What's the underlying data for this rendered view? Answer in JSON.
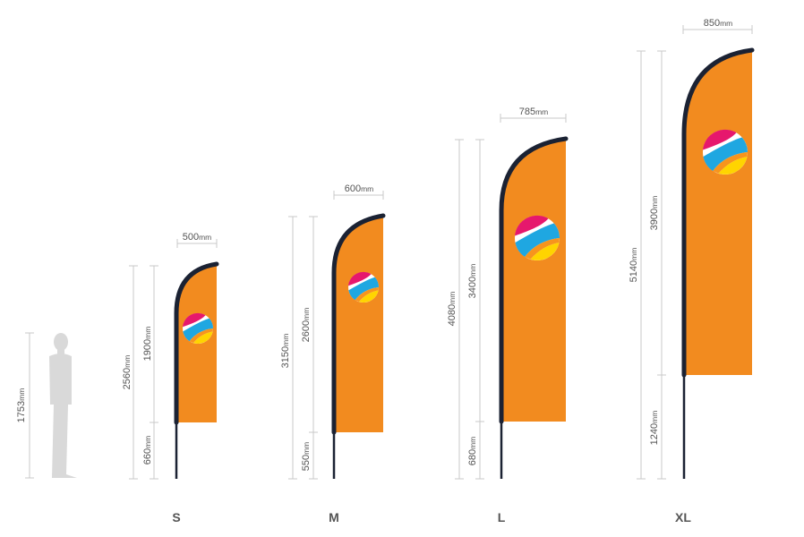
{
  "human": {
    "height": "1753",
    "unit": "mm"
  },
  "flags": [
    {
      "size": "S",
      "width": "500",
      "total": "2560",
      "flag": "1900",
      "pole": "660",
      "unit": "mm"
    },
    {
      "size": "M",
      "width": "600",
      "total": "3150",
      "flag": "2600",
      "pole": "550",
      "unit": "mm"
    },
    {
      "size": "L",
      "width": "785",
      "total": "4080",
      "flag": "3400",
      "pole": "680",
      "unit": "mm"
    },
    {
      "size": "XL",
      "width": "850",
      "total": "5140",
      "flag": "3900",
      "pole": "1240",
      "unit": "mm"
    }
  ],
  "colors": {
    "flag_orange": "#f28b1f",
    "flag_edge": "#f6a046",
    "frame": "#1b2233",
    "dim_line": "#c8c8c8",
    "silhouette": "#d9d9d9",
    "logo_magenta": "#e6186d",
    "logo_blue": "#1fa7e1",
    "logo_yellow": "#ffd400",
    "logo_orange": "#f7941d"
  }
}
